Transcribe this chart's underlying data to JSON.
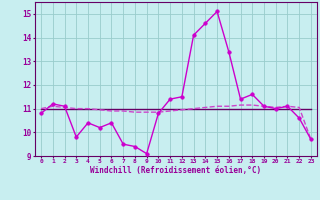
{
  "xlabel": "Windchill (Refroidissement éolien,°C)",
  "x_values": [
    0,
    1,
    2,
    3,
    4,
    5,
    6,
    7,
    8,
    9,
    10,
    11,
    12,
    13,
    14,
    15,
    16,
    17,
    18,
    19,
    20,
    21,
    22,
    23
  ],
  "y_main": [
    10.8,
    11.2,
    11.1,
    9.8,
    10.4,
    10.2,
    10.4,
    9.5,
    9.4,
    9.1,
    10.8,
    11.4,
    11.5,
    14.1,
    14.6,
    15.1,
    13.4,
    11.4,
    11.6,
    11.1,
    11.0,
    11.1,
    10.6,
    9.7
  ],
  "y_flat": [
    11.0,
    11.0,
    11.0,
    11.0,
    11.0,
    11.0,
    11.0,
    11.0,
    11.0,
    11.0,
    11.0,
    11.0,
    11.0,
    11.0,
    11.0,
    11.0,
    11.0,
    11.0,
    11.0,
    11.0,
    11.0,
    11.0,
    11.0,
    11.0
  ],
  "y_trend": [
    11.0,
    11.1,
    11.05,
    11.0,
    11.0,
    10.95,
    10.9,
    10.9,
    10.85,
    10.85,
    10.85,
    10.9,
    10.95,
    11.0,
    11.05,
    11.1,
    11.1,
    11.15,
    11.15,
    11.1,
    11.05,
    11.1,
    11.05,
    9.7
  ],
  "ylim_min": 9,
  "ylim_max": 15.5,
  "yticks": [
    9,
    10,
    11,
    12,
    13,
    14,
    15
  ],
  "bg_color": "#c8eef0",
  "grid_color": "#99cccc",
  "line_main_color": "#cc00cc",
  "line_flat_color": "#660066",
  "line_trend_color": "#cc44cc",
  "marker_size": 2.5,
  "line_width": 1.0,
  "xlabel_color": "#990099",
  "tick_color": "#990099",
  "spine_color": "#660066"
}
